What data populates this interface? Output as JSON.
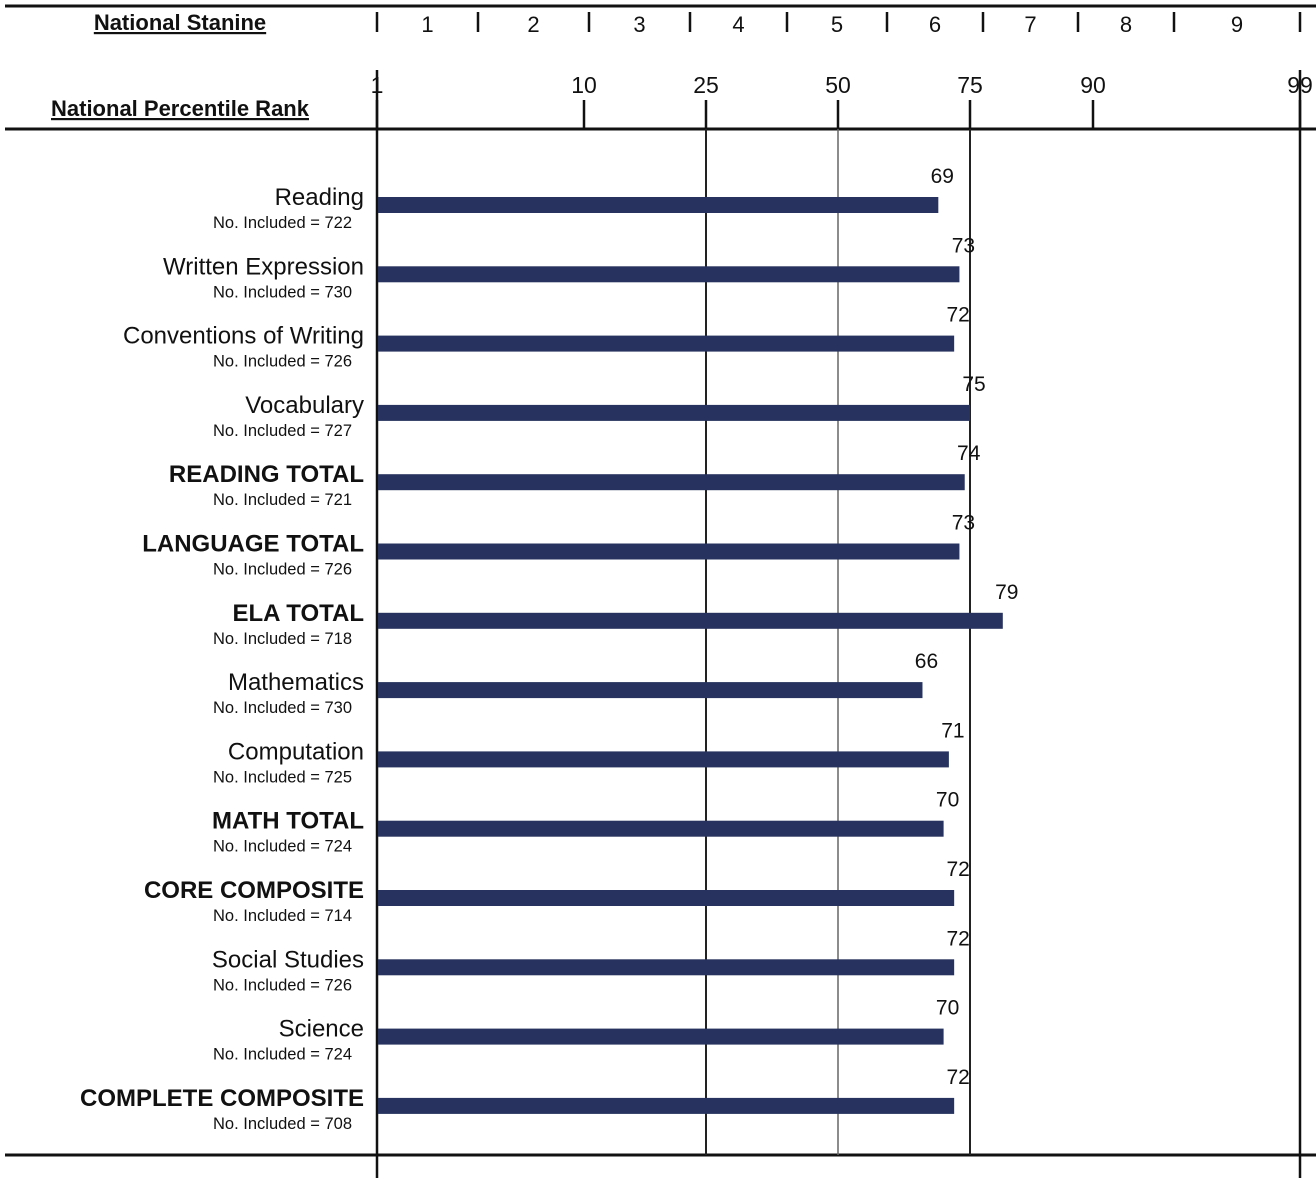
{
  "chart_data": {
    "type": "bar",
    "orientation": "horizontal",
    "scale": "percentile (normal-curve equivalent spacing)",
    "headers": {
      "stanine": "National Stanine",
      "percentile": "National Percentile Rank"
    },
    "stanine_labels": [
      "1",
      "2",
      "3",
      "4",
      "5",
      "6",
      "7",
      "8",
      "9"
    ],
    "percentile_ticks": [
      1,
      10,
      25,
      50,
      75,
      90,
      99
    ],
    "reference_lines": [
      25,
      50,
      75
    ],
    "xlim": [
      1,
      99
    ],
    "bar_color": "#27335e",
    "categories": [
      {
        "name": "Reading",
        "n": "No. Included = 722",
        "value": 69,
        "bold": false
      },
      {
        "name": "Written Expression",
        "n": "No. Included = 730",
        "value": 73,
        "bold": false
      },
      {
        "name": "Conventions of Writing",
        "n": "No. Included = 726",
        "value": 72,
        "bold": false
      },
      {
        "name": "Vocabulary",
        "n": "No. Included = 727",
        "value": 75,
        "bold": false
      },
      {
        "name": "READING TOTAL",
        "n": "No. Included = 721",
        "value": 74,
        "bold": true
      },
      {
        "name": "LANGUAGE TOTAL",
        "n": "No. Included = 726",
        "value": 73,
        "bold": true
      },
      {
        "name": "ELA TOTAL",
        "n": "No. Included = 718",
        "value": 79,
        "bold": true
      },
      {
        "name": "Mathematics",
        "n": "No. Included = 730",
        "value": 66,
        "bold": false
      },
      {
        "name": "Computation",
        "n": "No. Included = 725",
        "value": 71,
        "bold": false
      },
      {
        "name": "MATH TOTAL",
        "n": "No. Included = 724",
        "value": 70,
        "bold": true
      },
      {
        "name": "CORE COMPOSITE",
        "n": "No. Included = 714",
        "value": 72,
        "bold": true
      },
      {
        "name": "Social Studies",
        "n": "No. Included = 726",
        "value": 72,
        "bold": false
      },
      {
        "name": "Science",
        "n": "No. Included = 724",
        "value": 70,
        "bold": false
      },
      {
        "name": "COMPLETE COMPOSITE",
        "n": "No. Included = 708",
        "value": 72,
        "bold": true
      }
    ]
  }
}
